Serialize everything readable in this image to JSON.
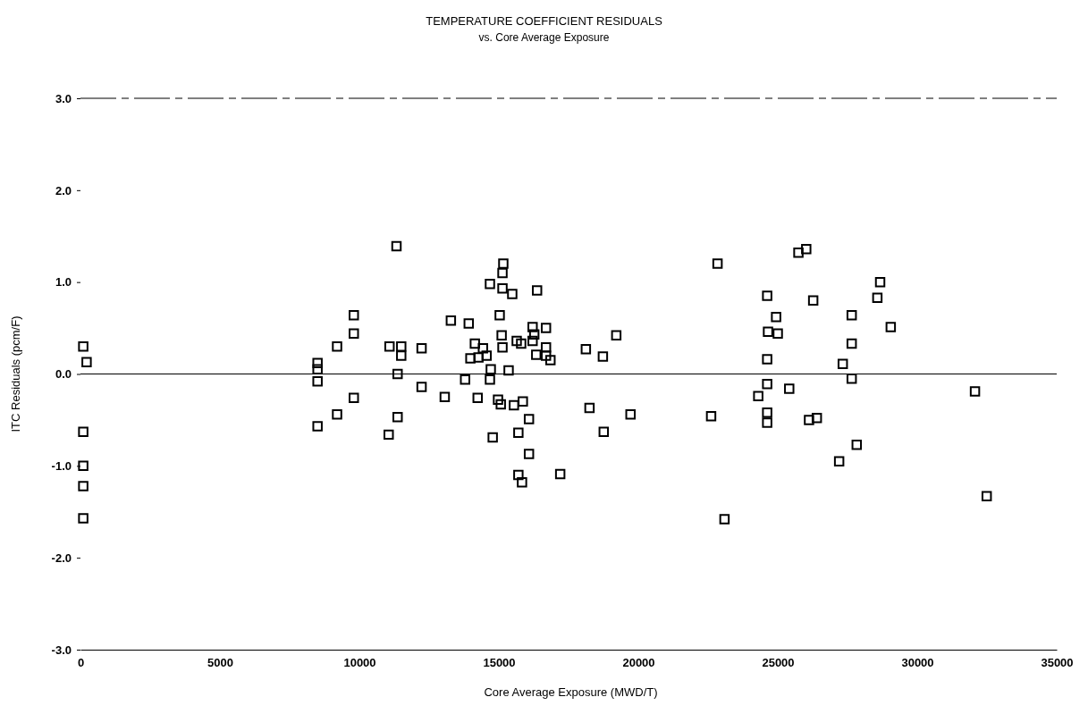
{
  "chart_data": {
    "type": "scatter",
    "title": "TEMPERATURE COEFFICIENT RESIDUALS",
    "subtitle": "vs. Core Average Exposure",
    "xlabel": "Core Average Exposure (MWD/T)",
    "ylabel": "ITC Residuals (pcm/F)",
    "xlim": [
      0,
      35000
    ],
    "xticks": [
      0,
      5000,
      10000,
      15000,
      20000,
      25000,
      30000,
      35000
    ],
    "ylim": [
      -3,
      3
    ],
    "yticks": [
      {
        "value": -3,
        "label": "-3.0"
      },
      {
        "value": -2,
        "label": "-2.0"
      },
      {
        "value": -1,
        "label": "-1.0"
      },
      {
        "value": 0,
        "label": "0.0"
      },
      {
        "value": 1,
        "label": "1.0"
      },
      {
        "value": 2,
        "label": "2.0"
      },
      {
        "value": 3,
        "label": "3.0"
      }
    ],
    "ref_lines": [
      {
        "axis": "y",
        "value": 0,
        "color": "#000000"
      }
    ],
    "marker": "square",
    "series": [
      {
        "color": "#000000",
        "x": [
          100,
          220,
          100,
          100,
          100,
          100,
          8500,
          8500,
          8500,
          8500,
          9200,
          9200,
          9800,
          9800,
          9800,
          11330,
          15160,
          15130,
          14680,
          15130,
          15480,
          16370,
          15030,
          13280,
          13920,
          16210,
          16690,
          16270,
          19210,
          15100,
          15640,
          15800,
          16210,
          11080,
          11500,
          11500,
          12230,
          14140,
          14430,
          15130,
          16690,
          18120,
          18730,
          13980,
          14270,
          14560,
          16340,
          16690,
          16850,
          14710,
          15350,
          11370,
          13790,
          14680,
          12230,
          13060,
          14240,
          14970,
          15070,
          15540,
          15860,
          18250,
          19720,
          11370,
          16080,
          11050,
          14780,
          15700,
          18760,
          16080,
          15700,
          15830,
          17200,
          22610,
          22840,
          25740,
          26020,
          28670,
          24620,
          26270,
          28570,
          24940,
          27650,
          24650,
          25000,
          29050,
          27650,
          24620,
          27330,
          27650,
          24620,
          25410,
          24300,
          24620,
          24620,
          26120,
          26400,
          27830,
          27200,
          32070,
          32490,
          23090
        ],
        "values": [
          0.3,
          0.13,
          -0.63,
          -1.0,
          -1.22,
          -1.57,
          0.12,
          0.05,
          -0.08,
          -0.57,
          0.3,
          -0.44,
          0.64,
          0.44,
          -0.26,
          1.39,
          1.2,
          1.1,
          0.98,
          0.93,
          0.87,
          0.91,
          0.64,
          0.58,
          0.55,
          0.51,
          0.5,
          0.43,
          0.42,
          0.42,
          0.36,
          0.33,
          0.36,
          0.3,
          0.3,
          0.2,
          0.28,
          0.33,
          0.28,
          0.29,
          0.29,
          0.27,
          0.19,
          0.17,
          0.18,
          0.2,
          0.21,
          0.2,
          0.15,
          0.05,
          0.04,
          0.0,
          -0.06,
          -0.06,
          -0.14,
          -0.25,
          -0.26,
          -0.28,
          -0.33,
          -0.34,
          -0.3,
          -0.37,
          -0.44,
          -0.47,
          -0.49,
          -0.66,
          -0.69,
          -0.64,
          -0.63,
          -0.87,
          -1.1,
          -1.18,
          -1.09,
          -0.46,
          1.2,
          1.32,
          1.36,
          1.0,
          0.85,
          0.8,
          0.83,
          0.62,
          0.64,
          0.46,
          0.44,
          0.51,
          0.33,
          0.16,
          0.11,
          -0.05,
          -0.11,
          -0.16,
          -0.24,
          -0.42,
          -0.53,
          -0.5,
          -0.48,
          -0.77,
          -0.95,
          -0.19,
          -1.33,
          -1.58
        ]
      }
    ]
  }
}
